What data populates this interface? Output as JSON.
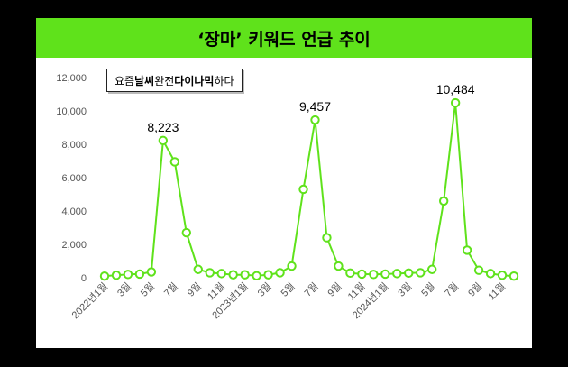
{
  "header": {
    "title": "‘장마’ 키워드 언급 추이"
  },
  "annotation": {
    "parts": [
      {
        "text": "요즘 ",
        "bold": false
      },
      {
        "text": "날씨",
        "bold": true
      },
      {
        "text": " 완전 ",
        "bold": false
      },
      {
        "text": "다이나믹",
        "bold": true
      },
      {
        "text": "하다",
        "bold": false
      }
    ]
  },
  "chart_data": {
    "type": "line",
    "title": "‘장마’ 키워드 언급 추이",
    "xlabel": "",
    "ylabel": "",
    "ylim": [
      0,
      12000
    ],
    "yticks": [
      "0",
      "2,000",
      "4,000",
      "6,000",
      "8,000",
      "10,000",
      "12,000"
    ],
    "ytick_values": [
      0,
      2000,
      4000,
      6000,
      8000,
      10000,
      12000
    ],
    "x": [
      "2022년1월",
      "2022년2월",
      "3월",
      "4월",
      "5월",
      "6월",
      "7월",
      "8월",
      "9월",
      "10월",
      "11월",
      "12월",
      "2023년1월",
      "2023년2월",
      "3월",
      "4월",
      "5월",
      "6월",
      "7월",
      "8월",
      "9월",
      "10월",
      "11월",
      "12월",
      "2024년1월",
      "2024년2월",
      "3월",
      "4월",
      "5월",
      "6월",
      "7월",
      "8월",
      "9월",
      "10월",
      "11월",
      "12월"
    ],
    "xtick_labels": [
      "2022년1월",
      "3월",
      "5월",
      "7월",
      "9월",
      "11월",
      "2023년1월",
      "3월",
      "5월",
      "7월",
      "9월",
      "11월",
      "2024년1월",
      "3월",
      "5월",
      "7월",
      "9월",
      "11월"
    ],
    "xtick_indices": [
      0,
      2,
      4,
      6,
      8,
      10,
      12,
      14,
      16,
      18,
      20,
      22,
      24,
      26,
      28,
      30,
      32,
      34
    ],
    "series": [
      {
        "name": "",
        "values": [
          100,
          150,
          200,
          220,
          350,
          8223,
          6950,
          2700,
          500,
          300,
          250,
          180,
          180,
          120,
          180,
          300,
          700,
          5300,
          9457,
          2400,
          700,
          280,
          220,
          200,
          220,
          250,
          280,
          300,
          500,
          4600,
          10484,
          1650,
          450,
          250,
          150,
          100
        ]
      }
    ],
    "data_labels": [
      {
        "index": 5,
        "text": "8,223"
      },
      {
        "index": 18,
        "text": "9,457"
      },
      {
        "index": 30,
        "text": "10,484"
      }
    ],
    "grid": false,
    "line_color": "#5fe21b",
    "marker_fill": "#ffffff"
  }
}
